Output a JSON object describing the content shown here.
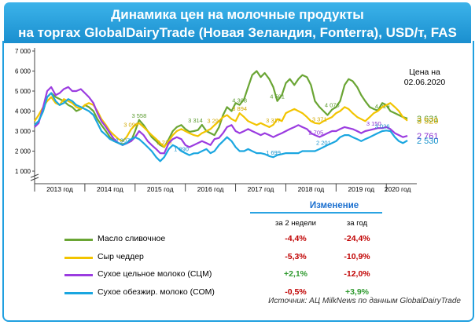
{
  "title_line1": "Динамика цен на молочные продукты",
  "title_line2": "на торгах GlobalDairyTrade (Новая Зеландия, Fonterra), USD/т, FAS",
  "price_date_line1": "Цена на",
  "price_date_line2": "02.06.2020",
  "legend": {
    "header": "Изменение",
    "col1": "за 2 недели",
    "col2": "за год",
    "rows": [
      {
        "label": "Масло сливочное",
        "color": "#6aa534",
        "weeks2": "-4,4%",
        "year": "-24,4%",
        "weeks2_color": "#c00000",
        "year_color": "#c00000"
      },
      {
        "label": "Сыр чеддер",
        "color": "#f2c400",
        "weeks2": "-5,3%",
        "year": "-10,9%",
        "weeks2_color": "#c00000",
        "year_color": "#c00000"
      },
      {
        "label": "Сухое цельное молоко (СЦМ)",
        "color": "#9b3ce0",
        "weeks2": "+2,1%",
        "year": "-12,0%",
        "weeks2_color": "#2f9a2f",
        "year_color": "#c00000"
      },
      {
        "label": "Сухое обезжир. молоко (СОМ)",
        "color": "#1aa6e0",
        "weeks2": "-0,5%",
        "year": "+3,9%",
        "weeks2_color": "#c00000",
        "year_color": "#2f9a2f"
      }
    ]
  },
  "source": "Источник: АЦ MilkNews по данным GlobalDairyTrade",
  "chart_data": {
    "type": "line",
    "ylim": [
      1000,
      7000
    ],
    "y_ticks": [
      "1 000",
      "2 000",
      "3 000",
      "4 000",
      "5 000",
      "6 000",
      "7 000"
    ],
    "y_tick_values": [
      1000,
      2000,
      3000,
      4000,
      5000,
      6000,
      7000
    ],
    "x_categories": [
      "2013 год",
      "2014 год",
      "2015 год",
      "2016 год",
      "2017 год",
      "2018 год",
      "2019 год",
      "2020 год"
    ],
    "x_range": [
      2013.0,
      2020.45
    ],
    "series": [
      {
        "name": "Масло сливочное",
        "color": "#6aa534",
        "x": [
          2013.0,
          2013.08,
          2013.17,
          2013.25,
          2013.33,
          2013.42,
          2013.5,
          2013.58,
          2013.67,
          2013.75,
          2013.83,
          2013.92,
          2014.0,
          2014.08,
          2014.17,
          2014.25,
          2014.33,
          2014.42,
          2014.5,
          2014.58,
          2014.67,
          2014.75,
          2014.83,
          2014.92,
          2015.0,
          2015.08,
          2015.17,
          2015.25,
          2015.33,
          2015.42,
          2015.5,
          2015.58,
          2015.67,
          2015.75,
          2015.83,
          2015.92,
          2016.0,
          2016.08,
          2016.17,
          2016.25,
          2016.33,
          2016.42,
          2016.5,
          2016.58,
          2016.67,
          2016.75,
          2016.83,
          2016.92,
          2017.0,
          2017.08,
          2017.17,
          2017.25,
          2017.33,
          2017.42,
          2017.5,
          2017.58,
          2017.67,
          2017.75,
          2017.83,
          2017.92,
          2018.0,
          2018.08,
          2018.17,
          2018.25,
          2018.33,
          2018.42,
          2018.5,
          2018.58,
          2018.67,
          2018.75,
          2018.83,
          2018.92,
          2019.0,
          2019.08,
          2019.17,
          2019.25,
          2019.33,
          2019.42,
          2019.5,
          2019.58,
          2019.67,
          2019.75,
          2019.83,
          2019.92,
          2020.0,
          2020.08,
          2020.17,
          2020.25,
          2020.33,
          2020.42
        ],
        "y": [
          3300,
          3500,
          4000,
          4700,
          4900,
          4700,
          4600,
          4500,
          4300,
          4200,
          4000,
          4100,
          4300,
          4200,
          4000,
          3600,
          3300,
          3000,
          2700,
          2500,
          2400,
          2350,
          2386,
          2500,
          3000,
          3558,
          3300,
          3000,
          2700,
          2500,
          2300,
          2200,
          2600,
          3000,
          3200,
          3300,
          3100,
          2964,
          3000,
          3050,
          3314,
          3000,
          2900,
          2800,
          3200,
          3800,
          4200,
          4000,
          4400,
          4308,
          4600,
          5200,
          5800,
          6000,
          5700,
          5900,
          5600,
          5200,
          4501,
          4800,
          5400,
          5600,
          5300,
          5600,
          5800,
          5700,
          5300,
          4500,
          4200,
          4000,
          3800,
          4076,
          4200,
          4500,
          5300,
          5600,
          5500,
          5200,
          4800,
          4500,
          4200,
          4100,
          4029,
          4400,
          4300,
          4000,
          3900,
          3800,
          3700,
          3631
        ],
        "labels": [
          {
            "x": 2015.08,
            "y": 3558,
            "text": "3 558"
          },
          {
            "x": 2016.2,
            "y": 3314,
            "text": "3 314"
          },
          {
            "x": 2017.08,
            "y": 4308,
            "text": "4 308"
          },
          {
            "x": 2017.83,
            "y": 4501,
            "text": "4 501"
          },
          {
            "x": 2018.92,
            "y": 4076,
            "text": "4 076"
          },
          {
            "x": 2019.92,
            "y": 4029,
            "text": "4 029"
          },
          {
            "x": 2020.42,
            "y": 3631,
            "text": "3 631"
          }
        ]
      },
      {
        "name": "Сыр чеддер",
        "color": "#f2c400",
        "x": [
          2013.0,
          2013.08,
          2013.17,
          2013.25,
          2013.33,
          2013.42,
          2013.5,
          2013.58,
          2013.67,
          2013.75,
          2013.83,
          2013.92,
          2014.0,
          2014.08,
          2014.17,
          2014.25,
          2014.33,
          2014.42,
          2014.5,
          2014.58,
          2014.67,
          2014.75,
          2014.83,
          2014.92,
          2015.0,
          2015.08,
          2015.17,
          2015.25,
          2015.33,
          2015.42,
          2015.5,
          2015.58,
          2015.67,
          2015.75,
          2015.83,
          2015.92,
          2016.0,
          2016.08,
          2016.17,
          2016.25,
          2016.33,
          2016.42,
          2016.5,
          2016.58,
          2016.67,
          2016.75,
          2016.83,
          2016.92,
          2017.0,
          2017.08,
          2017.17,
          2017.25,
          2017.33,
          2017.42,
          2017.5,
          2017.58,
          2017.67,
          2017.75,
          2017.83,
          2017.92,
          2018.0,
          2018.08,
          2018.17,
          2018.25,
          2018.33,
          2018.42,
          2018.5,
          2018.58,
          2018.67,
          2018.75,
          2018.83,
          2018.92,
          2019.0,
          2019.08,
          2019.17,
          2019.25,
          2019.33,
          2019.42,
          2019.5,
          2019.58,
          2019.67,
          2019.75,
          2019.83,
          2019.92,
          2020.0,
          2020.08,
          2020.17,
          2020.25,
          2020.33,
          2020.42
        ],
        "y": [
          3500,
          3800,
          4200,
          4500,
          4700,
          4400,
          4300,
          4600,
          4500,
          4400,
          4200,
          4100,
          4300,
          4400,
          4300,
          4000,
          3600,
          3300,
          3000,
          2800,
          2600,
          2500,
          2700,
          3090,
          3300,
          3400,
          3200,
          3000,
          2800,
          2600,
          2400,
          2210,
          2500,
          2800,
          3000,
          3100,
          3000,
          2900,
          2800,
          2750,
          2900,
          3000,
          3100,
          3294,
          3500,
          3700,
          3800,
          3600,
          3500,
          3894,
          3700,
          3500,
          3400,
          3300,
          3400,
          3300,
          3200,
          3317,
          3600,
          3500,
          3900,
          4000,
          4100,
          4000,
          3900,
          3700,
          3500,
          3400,
          3371,
          3500,
          3600,
          3700,
          3900,
          4000,
          4200,
          4100,
          3900,
          3700,
          3600,
          3500,
          3700,
          3900,
          4000,
          4200,
          4300,
          4400,
          4200,
          4000,
          3700,
          3520
        ],
        "labels": [
          {
            "x": 2014.92,
            "y": 3090,
            "text": "3 090"
          },
          {
            "x": 2015.58,
            "y": 2210,
            "text": "2 210"
          },
          {
            "x": 2016.58,
            "y": 3294,
            "text": "3 294"
          },
          {
            "x": 2017.08,
            "y": 3894,
            "text": "3 894"
          },
          {
            "x": 2017.75,
            "y": 3317,
            "text": "3 317"
          },
          {
            "x": 2018.67,
            "y": 3371,
            "text": "3 371"
          },
          {
            "x": 2020.42,
            "y": 3520,
            "text": "3 520"
          }
        ]
      },
      {
        "name": "Сухое цельное молоко (СЦМ)",
        "color": "#9b3ce0",
        "x": [
          2013.0,
          2013.08,
          2013.17,
          2013.25,
          2013.33,
          2013.42,
          2013.5,
          2013.58,
          2013.67,
          2013.75,
          2013.83,
          2013.92,
          2014.0,
          2014.08,
          2014.17,
          2014.25,
          2014.33,
          2014.42,
          2014.5,
          2014.58,
          2014.67,
          2014.75,
          2014.83,
          2014.92,
          2015.0,
          2015.08,
          2015.17,
          2015.25,
          2015.33,
          2015.42,
          2015.5,
          2015.58,
          2015.67,
          2015.75,
          2015.83,
          2015.92,
          2016.0,
          2016.08,
          2016.17,
          2016.25,
          2016.33,
          2016.42,
          2016.5,
          2016.58,
          2016.67,
          2016.75,
          2016.83,
          2016.92,
          2017.0,
          2017.08,
          2017.17,
          2017.25,
          2017.33,
          2017.42,
          2017.5,
          2017.58,
          2017.67,
          2017.75,
          2017.83,
          2017.92,
          2018.0,
          2018.08,
          2018.17,
          2018.25,
          2018.33,
          2018.42,
          2018.5,
          2018.58,
          2018.67,
          2018.75,
          2018.83,
          2018.92,
          2019.0,
          2019.08,
          2019.17,
          2019.25,
          2019.33,
          2019.42,
          2019.5,
          2019.58,
          2019.67,
          2019.75,
          2019.83,
          2019.92,
          2020.0,
          2020.08,
          2020.17,
          2020.25,
          2020.33,
          2020.42
        ],
        "y": [
          3200,
          3400,
          4200,
          5000,
          5200,
          4800,
          4900,
          5100,
          5200,
          5000,
          5000,
          5100,
          4900,
          4700,
          4400,
          3900,
          3500,
          3200,
          2900,
          2600,
          2400,
          2300,
          2386,
          2500,
          2700,
          3000,
          2800,
          2500,
          2300,
          2100,
          1900,
          1890,
          2400,
          2600,
          2700,
          2600,
          2300,
          2200,
          2300,
          2400,
          2500,
          2400,
          2300,
          2600,
          2660,
          2900,
          3200,
          3300,
          3000,
          2900,
          3000,
          3100,
          3000,
          2900,
          2800,
          2900,
          2800,
          2700,
          2800,
          2900,
          3000,
          3100,
          3200,
          3300,
          3200,
          3100,
          2900,
          2800,
          2705,
          2800,
          2900,
          3000,
          3000,
          3100,
          3200,
          3150,
          3100,
          3000,
          2900,
          3000,
          3050,
          3100,
          3150,
          3150,
          3200,
          3100,
          2900,
          2800,
          2700,
          2761
        ],
        "labels": [
          {
            "x": 2018.6,
            "y": 2705,
            "text": "2 705"
          },
          {
            "x": 2019.75,
            "y": 3150,
            "text": "3 150"
          },
          {
            "x": 2020.42,
            "y": 2761,
            "text": "2 761"
          }
        ]
      },
      {
        "name": "Сухое обезжир. молоко (СОМ)",
        "color": "#1aa6e0",
        "x": [
          2013.0,
          2013.08,
          2013.17,
          2013.25,
          2013.33,
          2013.42,
          2013.5,
          2013.58,
          2013.67,
          2013.75,
          2013.83,
          2013.92,
          2014.0,
          2014.08,
          2014.17,
          2014.25,
          2014.33,
          2014.42,
          2014.5,
          2014.58,
          2014.67,
          2014.75,
          2014.83,
          2014.92,
          2015.0,
          2015.08,
          2015.17,
          2015.25,
          2015.33,
          2015.42,
          2015.5,
          2015.58,
          2015.67,
          2015.75,
          2015.83,
          2015.92,
          2016.0,
          2016.08,
          2016.17,
          2016.25,
          2016.33,
          2016.42,
          2016.5,
          2016.58,
          2016.67,
          2016.75,
          2016.83,
          2016.92,
          2017.0,
          2017.08,
          2017.17,
          2017.25,
          2017.33,
          2017.42,
          2017.5,
          2017.58,
          2017.67,
          2017.75,
          2017.83,
          2017.92,
          2018.0,
          2018.08,
          2018.17,
          2018.25,
          2018.33,
          2018.42,
          2018.5,
          2018.58,
          2018.67,
          2018.75,
          2018.83,
          2018.92,
          2019.0,
          2019.08,
          2019.17,
          2019.25,
          2019.33,
          2019.42,
          2019.5,
          2019.58,
          2019.67,
          2019.75,
          2019.83,
          2019.92,
          2020.0,
          2020.08,
          2020.17,
          2020.25,
          2020.33,
          2020.42
        ],
        "y": [
          3300,
          3500,
          4000,
          4700,
          4900,
          4500,
          4300,
          4400,
          4600,
          4500,
          4300,
          4200,
          4100,
          4000,
          3800,
          3400,
          3000,
          2800,
          2600,
          2500,
          2400,
          2307,
          2400,
          2600,
          2700,
          2600,
          2400,
          2200,
          2000,
          1700,
          1500,
          1700,
          2100,
          2300,
          2200,
          2000,
          1900,
          1800,
          1890,
          1900,
          2000,
          2100,
          1900,
          2000,
          2300,
          2500,
          2700,
          2500,
          2200,
          2000,
          2000,
          2100,
          2000,
          1900,
          1900,
          1850,
          1750,
          1699,
          1800,
          1850,
          1900,
          1900,
          1900,
          1900,
          2000,
          2000,
          2000,
          2000,
          2100,
          2201,
          2300,
          2400,
          2500,
          2700,
          2800,
          2800,
          2700,
          2600,
          2500,
          2600,
          2700,
          2800,
          2900,
          3000,
          3026,
          3000,
          2700,
          2500,
          2400,
          2530
        ],
        "labels": [
          {
            "x": 2014.75,
            "y": 2307,
            "text": "2 307"
          },
          {
            "x": 2015.92,
            "y": 1890,
            "text": "1 890"
          },
          {
            "x": 2017.75,
            "y": 1699,
            "text": "1 699"
          },
          {
            "x": 2018.75,
            "y": 2201,
            "text": "2 201"
          },
          {
            "x": 2019.92,
            "y": 3026,
            "text": "3 026"
          },
          {
            "x": 2020.42,
            "y": 2530,
            "text": "2 530"
          }
        ]
      }
    ]
  }
}
